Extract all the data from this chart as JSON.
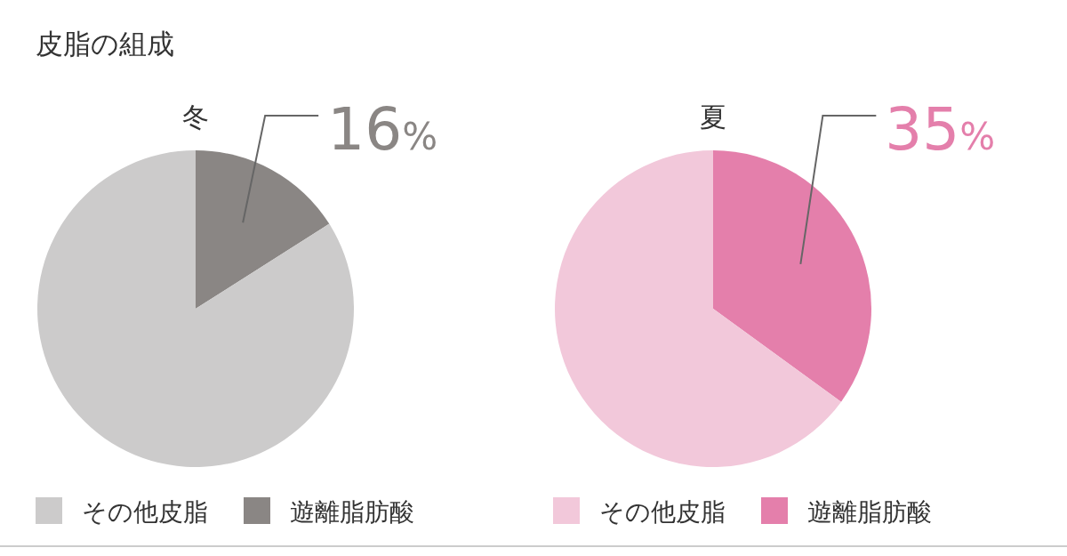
{
  "chart_data": [
    {
      "type": "pie",
      "title": "皮脂の組成",
      "subtitle": "冬",
      "categories": [
        "その他皮脂",
        "遊離脂肪酸"
      ],
      "values": [
        84,
        16
      ],
      "colors": [
        "#cccbcb",
        "#8a8684"
      ],
      "value_labels": [
        null,
        "16%"
      ],
      "legend": "bottom"
    },
    {
      "type": "pie",
      "subtitle": "夏",
      "categories": [
        "その他皮脂",
        "遊離脂肪酸"
      ],
      "values": [
        65,
        35
      ],
      "colors": [
        "#f2c8da",
        "#e47fab"
      ],
      "value_labels": [
        null,
        "35%"
      ],
      "legend": "bottom"
    }
  ]
}
